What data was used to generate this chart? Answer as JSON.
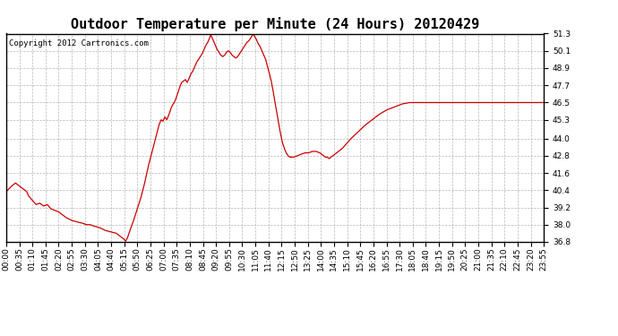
{
  "title": "Outdoor Temperature per Minute (24 Hours) 20120429",
  "copyright_text": "Copyright 2012 Cartronics.com",
  "line_color": "#cc0000",
  "background_color": "#ffffff",
  "plot_bg_color": "#ffffff",
  "grid_color": "#b0b0b0",
  "ylim": [
    36.8,
    51.3
  ],
  "yticks": [
    36.8,
    38.0,
    39.2,
    40.4,
    41.6,
    42.8,
    44.0,
    45.3,
    46.5,
    47.7,
    48.9,
    50.1,
    51.3
  ],
  "title_fontsize": 11,
  "tick_fontsize": 6.5,
  "copyright_fontsize": 6.5,
  "x_tick_labels": [
    "00:00",
    "00:35",
    "01:10",
    "01:45",
    "02:20",
    "02:55",
    "03:30",
    "04:05",
    "04:40",
    "05:15",
    "05:50",
    "06:25",
    "07:00",
    "07:35",
    "08:10",
    "08:45",
    "09:20",
    "09:55",
    "10:30",
    "11:05",
    "11:40",
    "12:15",
    "12:50",
    "13:25",
    "14:00",
    "14:35",
    "15:10",
    "15:45",
    "16:20",
    "16:55",
    "17:30",
    "18:05",
    "18:40",
    "19:15",
    "19:50",
    "20:25",
    "21:00",
    "21:35",
    "22:10",
    "22:45",
    "23:20",
    "23:55"
  ],
  "key_points": [
    [
      0,
      40.3
    ],
    [
      15,
      40.7
    ],
    [
      25,
      40.9
    ],
    [
      35,
      40.7
    ],
    [
      45,
      40.5
    ],
    [
      55,
      40.3
    ],
    [
      60,
      40.0
    ],
    [
      70,
      39.7
    ],
    [
      80,
      39.4
    ],
    [
      90,
      39.5
    ],
    [
      100,
      39.3
    ],
    [
      110,
      39.4
    ],
    [
      120,
      39.1
    ],
    [
      130,
      39.0
    ],
    [
      140,
      38.9
    ],
    [
      150,
      38.7
    ],
    [
      160,
      38.5
    ],
    [
      175,
      38.3
    ],
    [
      190,
      38.2
    ],
    [
      205,
      38.1
    ],
    [
      215,
      38.0
    ],
    [
      225,
      38.0
    ],
    [
      235,
      37.9
    ],
    [
      250,
      37.8
    ],
    [
      265,
      37.6
    ],
    [
      280,
      37.5
    ],
    [
      295,
      37.4
    ],
    [
      305,
      37.2
    ],
    [
      315,
      37.0
    ],
    [
      320,
      36.85
    ],
    [
      325,
      37.1
    ],
    [
      330,
      37.5
    ],
    [
      340,
      38.2
    ],
    [
      350,
      39.0
    ],
    [
      360,
      39.8
    ],
    [
      370,
      40.8
    ],
    [
      380,
      42.0
    ],
    [
      390,
      43.0
    ],
    [
      400,
      44.0
    ],
    [
      405,
      44.5
    ],
    [
      410,
      45.0
    ],
    [
      415,
      45.3
    ],
    [
      420,
      45.2
    ],
    [
      425,
      45.5
    ],
    [
      430,
      45.3
    ],
    [
      435,
      45.6
    ],
    [
      440,
      46.0
    ],
    [
      445,
      46.3
    ],
    [
      450,
      46.5
    ],
    [
      455,
      46.8
    ],
    [
      460,
      47.2
    ],
    [
      465,
      47.6
    ],
    [
      470,
      47.9
    ],
    [
      475,
      48.0
    ],
    [
      480,
      48.1
    ],
    [
      485,
      47.9
    ],
    [
      490,
      48.2
    ],
    [
      495,
      48.5
    ],
    [
      500,
      48.7
    ],
    [
      505,
      49.0
    ],
    [
      510,
      49.3
    ],
    [
      515,
      49.5
    ],
    [
      520,
      49.7
    ],
    [
      525,
      49.9
    ],
    [
      530,
      50.2
    ],
    [
      535,
      50.5
    ],
    [
      540,
      50.7
    ],
    [
      545,
      51.0
    ],
    [
      548,
      51.2
    ],
    [
      550,
      51.1
    ],
    [
      555,
      50.8
    ],
    [
      560,
      50.5
    ],
    [
      565,
      50.2
    ],
    [
      570,
      50.0
    ],
    [
      575,
      49.8
    ],
    [
      580,
      49.7
    ],
    [
      585,
      49.8
    ],
    [
      590,
      50.0
    ],
    [
      595,
      50.1
    ],
    [
      600,
      50.0
    ],
    [
      605,
      49.8
    ],
    [
      610,
      49.7
    ],
    [
      615,
      49.6
    ],
    [
      620,
      49.7
    ],
    [
      625,
      49.9
    ],
    [
      630,
      50.1
    ],
    [
      635,
      50.3
    ],
    [
      640,
      50.5
    ],
    [
      645,
      50.7
    ],
    [
      650,
      50.8
    ],
    [
      655,
      51.0
    ],
    [
      660,
      51.2
    ],
    [
      663,
      51.25
    ],
    [
      665,
      51.1
    ],
    [
      670,
      50.9
    ],
    [
      675,
      50.6
    ],
    [
      680,
      50.4
    ],
    [
      685,
      50.1
    ],
    [
      690,
      49.8
    ],
    [
      695,
      49.5
    ],
    [
      700,
      49.0
    ],
    [
      705,
      48.5
    ],
    [
      710,
      48.0
    ],
    [
      715,
      47.3
    ],
    [
      720,
      46.5
    ],
    [
      725,
      45.8
    ],
    [
      730,
      45.0
    ],
    [
      735,
      44.3
    ],
    [
      740,
      43.7
    ],
    [
      745,
      43.3
    ],
    [
      750,
      43.0
    ],
    [
      755,
      42.8
    ],
    [
      760,
      42.7
    ],
    [
      770,
      42.7
    ],
    [
      780,
      42.8
    ],
    [
      790,
      42.9
    ],
    [
      800,
      43.0
    ],
    [
      810,
      43.0
    ],
    [
      820,
      43.1
    ],
    [
      830,
      43.1
    ],
    [
      840,
      43.0
    ],
    [
      845,
      42.9
    ],
    [
      850,
      42.8
    ],
    [
      855,
      42.7
    ],
    [
      860,
      42.7
    ],
    [
      865,
      42.6
    ],
    [
      870,
      42.7
    ],
    [
      875,
      42.8
    ],
    [
      880,
      42.9
    ],
    [
      890,
      43.1
    ],
    [
      900,
      43.3
    ],
    [
      910,
      43.6
    ],
    [
      920,
      43.9
    ],
    [
      940,
      44.4
    ],
    [
      960,
      44.9
    ],
    [
      980,
      45.3
    ],
    [
      1000,
      45.7
    ],
    [
      1020,
      46.0
    ],
    [
      1040,
      46.2
    ],
    [
      1060,
      46.4
    ],
    [
      1080,
      46.5
    ],
    [
      1100,
      46.5
    ],
    [
      1120,
      46.5
    ],
    [
      1140,
      46.5
    ],
    [
      1200,
      46.5
    ],
    [
      1260,
      46.5
    ],
    [
      1320,
      46.5
    ],
    [
      1380,
      46.5
    ],
    [
      1435,
      46.5
    ]
  ]
}
